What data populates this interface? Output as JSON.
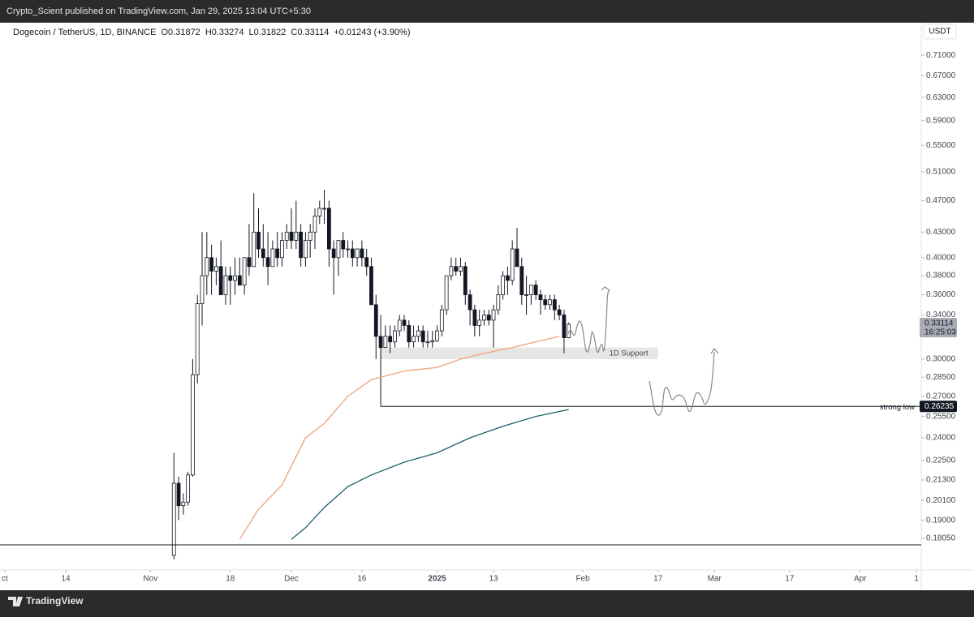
{
  "page": {
    "publish_line": "Crypto_Scient published on TradingView.com, Jan 29, 2025 13:04 UTC+5:30",
    "footer_brand": "TradingView",
    "currency_button": "USDT"
  },
  "chart_data": {
    "type": "candlestick",
    "log_scale": true,
    "grid": false,
    "symbol": "Dogecoin / TetherUS, 1D, BINANCE",
    "ohlc_legend": [
      "O0.31872",
      "H0.33274",
      "L0.31822",
      "C0.33114"
    ],
    "change": "+0.01243 (+3.90%)",
    "x": [
      "2024-11-06",
      "2024-11-07",
      "2024-11-08",
      "2024-11-09",
      "2024-11-10",
      "2024-11-11",
      "2024-11-12",
      "2024-11-13",
      "2024-11-14",
      "2024-11-15",
      "2024-11-16",
      "2024-11-17",
      "2024-11-18",
      "2024-11-19",
      "2024-11-20",
      "2024-11-21",
      "2024-11-22",
      "2024-11-23",
      "2024-11-24",
      "2024-11-25",
      "2024-11-26",
      "2024-11-27",
      "2024-11-28",
      "2024-11-29",
      "2024-11-30",
      "2024-12-01",
      "2024-12-02",
      "2024-12-03",
      "2024-12-04",
      "2024-12-05",
      "2024-12-06",
      "2024-12-07",
      "2024-12-08",
      "2024-12-09",
      "2024-12-10",
      "2024-12-11",
      "2024-12-12",
      "2024-12-13",
      "2024-12-14",
      "2024-12-15",
      "2024-12-16",
      "2024-12-17",
      "2024-12-18",
      "2024-12-19",
      "2024-12-20",
      "2024-12-21",
      "2024-12-22",
      "2024-12-23",
      "2024-12-24",
      "2024-12-25",
      "2024-12-26",
      "2024-12-27",
      "2024-12-28",
      "2024-12-29",
      "2024-12-30",
      "2024-12-31",
      "2025-01-01",
      "2025-01-02",
      "2025-01-03",
      "2025-01-04",
      "2025-01-05",
      "2025-01-06",
      "2025-01-07",
      "2025-01-08",
      "2025-01-09",
      "2025-01-10",
      "2025-01-11",
      "2025-01-12",
      "2025-01-13",
      "2025-01-14",
      "2025-01-15",
      "2025-01-16",
      "2025-01-17",
      "2025-01-18",
      "2025-01-19",
      "2025-01-20",
      "2025-01-21",
      "2025-01-22",
      "2025-01-23",
      "2025-01-24",
      "2025-01-25",
      "2025-01-26",
      "2025-01-27",
      "2025-01-28",
      "2025-01-29"
    ],
    "open": [
      0.172,
      0.211,
      0.198,
      0.2,
      0.216,
      0.287,
      0.351,
      0.38,
      0.4,
      0.385,
      0.39,
      0.36,
      0.38,
      0.375,
      0.38,
      0.37,
      0.4,
      0.39,
      0.43,
      0.41,
      0.4,
      0.39,
      0.41,
      0.4,
      0.42,
      0.43,
      0.42,
      0.43,
      0.4,
      0.42,
      0.43,
      0.45,
      0.46,
      0.46,
      0.41,
      0.4,
      0.42,
      0.41,
      0.41,
      0.4,
      0.41,
      0.4,
      0.39,
      0.35,
      0.32,
      0.31,
      0.32,
      0.315,
      0.325,
      0.335,
      0.33,
      0.315,
      0.32,
      0.325,
      0.315,
      0.315,
      0.316,
      0.325,
      0.345,
      0.38,
      0.39,
      0.385,
      0.39,
      0.36,
      0.345,
      0.33,
      0.335,
      0.34,
      0.335,
      0.345,
      0.36,
      0.38,
      0.375,
      0.41,
      0.39,
      0.36,
      0.36,
      0.37,
      0.36,
      0.355,
      0.35,
      0.355,
      0.345,
      0.34,
      0.31872
    ],
    "high": [
      0.23,
      0.215,
      0.205,
      0.218,
      0.3,
      0.36,
      0.43,
      0.43,
      0.415,
      0.4,
      0.42,
      0.39,
      0.39,
      0.4,
      0.4,
      0.4,
      0.44,
      0.48,
      0.46,
      0.44,
      0.43,
      0.42,
      0.43,
      0.43,
      0.44,
      0.46,
      0.47,
      0.44,
      0.43,
      0.44,
      0.46,
      0.47,
      0.485,
      0.47,
      0.42,
      0.42,
      0.43,
      0.42,
      0.42,
      0.41,
      0.42,
      0.41,
      0.4,
      0.36,
      0.34,
      0.33,
      0.33,
      0.33,
      0.34,
      0.34,
      0.335,
      0.33,
      0.33,
      0.33,
      0.325,
      0.325,
      0.33,
      0.35,
      0.38,
      0.4,
      0.4,
      0.4,
      0.395,
      0.365,
      0.35,
      0.345,
      0.345,
      0.345,
      0.35,
      0.37,
      0.385,
      0.39,
      0.42,
      0.435,
      0.4,
      0.38,
      0.37,
      0.375,
      0.365,
      0.36,
      0.36,
      0.36,
      0.35,
      0.345,
      0.33274
    ],
    "low": [
      0.17,
      0.19,
      0.193,
      0.198,
      0.215,
      0.28,
      0.33,
      0.36,
      0.36,
      0.37,
      0.36,
      0.35,
      0.35,
      0.36,
      0.37,
      0.36,
      0.38,
      0.39,
      0.4,
      0.39,
      0.37,
      0.39,
      0.39,
      0.39,
      0.41,
      0.41,
      0.41,
      0.39,
      0.39,
      0.4,
      0.41,
      0.44,
      0.44,
      0.39,
      0.36,
      0.38,
      0.4,
      0.4,
      0.39,
      0.39,
      0.39,
      0.38,
      0.35,
      0.3,
      0.3,
      0.31,
      0.305,
      0.31,
      0.32,
      0.325,
      0.31,
      0.31,
      0.315,
      0.31,
      0.31,
      0.31,
      0.315,
      0.32,
      0.34,
      0.375,
      0.38,
      0.38,
      0.35,
      0.33,
      0.32,
      0.32,
      0.33,
      0.33,
      0.31,
      0.34,
      0.355,
      0.36,
      0.37,
      0.39,
      0.35,
      0.34,
      0.35,
      0.355,
      0.34,
      0.345,
      0.345,
      0.335,
      0.335,
      0.305,
      0.31822
    ],
    "close": [
      0.211,
      0.198,
      0.2,
      0.216,
      0.287,
      0.351,
      0.38,
      0.4,
      0.385,
      0.39,
      0.36,
      0.38,
      0.375,
      0.38,
      0.37,
      0.4,
      0.39,
      0.43,
      0.41,
      0.4,
      0.39,
      0.41,
      0.4,
      0.42,
      0.43,
      0.42,
      0.43,
      0.4,
      0.42,
      0.43,
      0.45,
      0.46,
      0.46,
      0.41,
      0.4,
      0.42,
      0.41,
      0.41,
      0.4,
      0.41,
      0.4,
      0.39,
      0.35,
      0.32,
      0.31,
      0.32,
      0.315,
      0.325,
      0.335,
      0.33,
      0.315,
      0.32,
      0.325,
      0.315,
      0.315,
      0.316,
      0.325,
      0.345,
      0.38,
      0.39,
      0.385,
      0.39,
      0.36,
      0.345,
      0.33,
      0.335,
      0.34,
      0.335,
      0.345,
      0.36,
      0.38,
      0.375,
      0.41,
      0.39,
      0.36,
      0.36,
      0.37,
      0.36,
      0.355,
      0.35,
      0.355,
      0.345,
      0.34,
      0.31872,
      0.33114
    ],
    "up_color": "#ffffff",
    "down_color": "#131722",
    "lines": [
      {
        "color": "#f4a07a",
        "x": [
          "2024-11-20",
          "2024-11-24",
          "2024-11-29",
          "2024-12-04",
          "2024-12-08",
          "2024-12-13",
          "2024-12-18",
          "2024-12-25",
          "2025-01-01",
          "2025-01-06",
          "2025-01-11",
          "2025-01-17",
          "2025-01-22",
          "2025-01-27"
        ],
        "values": [
          0.18,
          0.196,
          0.21,
          0.24,
          0.25,
          0.27,
          0.283,
          0.29,
          0.293,
          0.3,
          0.305,
          0.31,
          0.315,
          0.32
        ]
      },
      {
        "color": "#1f5f6b",
        "x": [
          "2024-12-01",
          "2024-12-04",
          "2024-12-08",
          "2024-12-13",
          "2024-12-18",
          "2024-12-25",
          "2025-01-01",
          "2025-01-08",
          "2025-01-15",
          "2025-01-22",
          "2025-01-29"
        ],
        "values": [
          0.18,
          0.186,
          0.197,
          0.209,
          0.216,
          0.224,
          0.23,
          0.24,
          0.248,
          0.255,
          0.26
        ]
      }
    ],
    "support_zone": {
      "label": "1D Support",
      "range": [
        0.3,
        0.31
      ],
      "x": [
        "2024-12-20",
        "2025-02-17"
      ]
    },
    "strong_low": {
      "label": "strong low",
      "value": 0.26235,
      "x": "2024-12-20"
    },
    "last_price": 0.33114,
    "countdown": "16:25:03",
    "xlim": [
      "2024-09-30",
      "2025-04-14"
    ],
    "xticks": [
      {
        "value": "2024-10-01",
        "label": "ct"
      },
      {
        "value": "2024-10-14",
        "label": "14"
      },
      {
        "value": "2024-11-01",
        "label": "Nov"
      },
      {
        "value": "2024-11-18",
        "label": "18"
      },
      {
        "value": "2024-12-01",
        "label": "Dec"
      },
      {
        "value": "2024-12-16",
        "label": "16"
      },
      {
        "value": "2025-01-01",
        "label": "2025"
      },
      {
        "value": "2025-01-13",
        "label": "13"
      },
      {
        "value": "2025-02-01",
        "label": "Feb"
      },
      {
        "value": "2025-02-17",
        "label": "17"
      },
      {
        "value": "2025-03-01",
        "label": "Mar"
      },
      {
        "value": "2025-03-17",
        "label": "17"
      },
      {
        "value": "2025-04-01",
        "label": "Apr"
      },
      {
        "value": "2025-04-13",
        "label": "1"
      }
    ],
    "ylim": [
      0.165,
      0.775
    ],
    "yticks": [
      {
        "value": 0.71,
        "label": "0.71000"
      },
      {
        "value": 0.67,
        "label": "0.67000"
      },
      {
        "value": 0.63,
        "label": "0.63000"
      },
      {
        "value": 0.59,
        "label": "0.59000"
      },
      {
        "value": 0.55,
        "label": "0.55000"
      },
      {
        "value": 0.51,
        "label": "0.51000"
      },
      {
        "value": 0.47,
        "label": "0.47000"
      },
      {
        "value": 0.43,
        "label": "0.43000"
      },
      {
        "value": 0.4,
        "label": "0.40000"
      },
      {
        "value": 0.38,
        "label": "0.38000"
      },
      {
        "value": 0.36,
        "label": "0.36000"
      },
      {
        "value": 0.34,
        "label": "0.34000"
      },
      {
        "value": 0.3,
        "label": "0.30000"
      },
      {
        "value": 0.285,
        "label": "0.28500"
      },
      {
        "value": 0.27,
        "label": "0.27000"
      },
      {
        "value": 0.255,
        "label": "0.25500"
      },
      {
        "value": 0.24,
        "label": "0.24000"
      },
      {
        "value": 0.225,
        "label": "0.22500"
      },
      {
        "value": 0.213,
        "label": "0.21300"
      },
      {
        "value": 0.201,
        "label": "0.20100"
      },
      {
        "value": 0.19,
        "label": "0.19000"
      },
      {
        "value": 0.1805,
        "label": "0.18050"
      }
    ]
  }
}
